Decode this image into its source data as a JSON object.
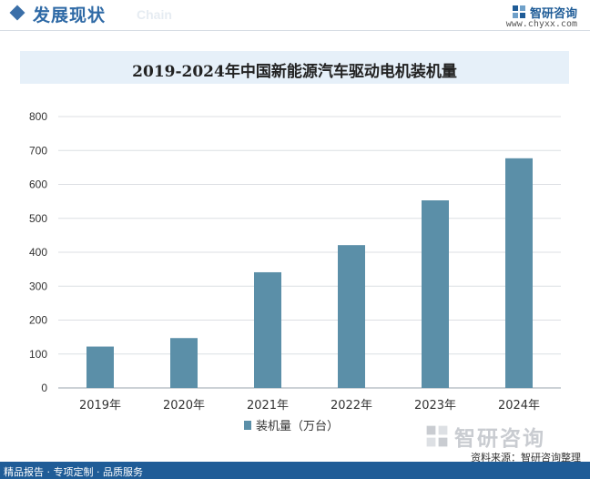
{
  "header": {
    "section_title": "发展现状",
    "section_sub": "Chain",
    "brand_name": "智研咨询",
    "brand_url": "www.chyxx.com"
  },
  "footer": {
    "left_text": "精品报告 · 专项定制 · 品质服务",
    "source": "资料来源：智研咨询整理",
    "watermark": "智研咨询"
  },
  "colors": {
    "bar": "#5b8fa8",
    "brand": "#1f5c97",
    "title_bg": "#e6f0f9"
  },
  "chart_data": {
    "type": "bar",
    "title": "2019-2024年中国新能源汽车驱动电机装机量",
    "categories": [
      "2019年",
      "2020年",
      "2021年",
      "2022年",
      "2023年",
      "2024年"
    ],
    "series": [
      {
        "name": "装机量（万台）",
        "values": [
          122,
          147,
          341,
          421,
          553,
          677
        ]
      }
    ],
    "xlabel": "",
    "ylabel": "",
    "ylim": [
      0,
      800
    ],
    "yticks": [
      0,
      100,
      200,
      300,
      400,
      500,
      600,
      700,
      800
    ],
    "grid": true,
    "legend": "bottom"
  }
}
